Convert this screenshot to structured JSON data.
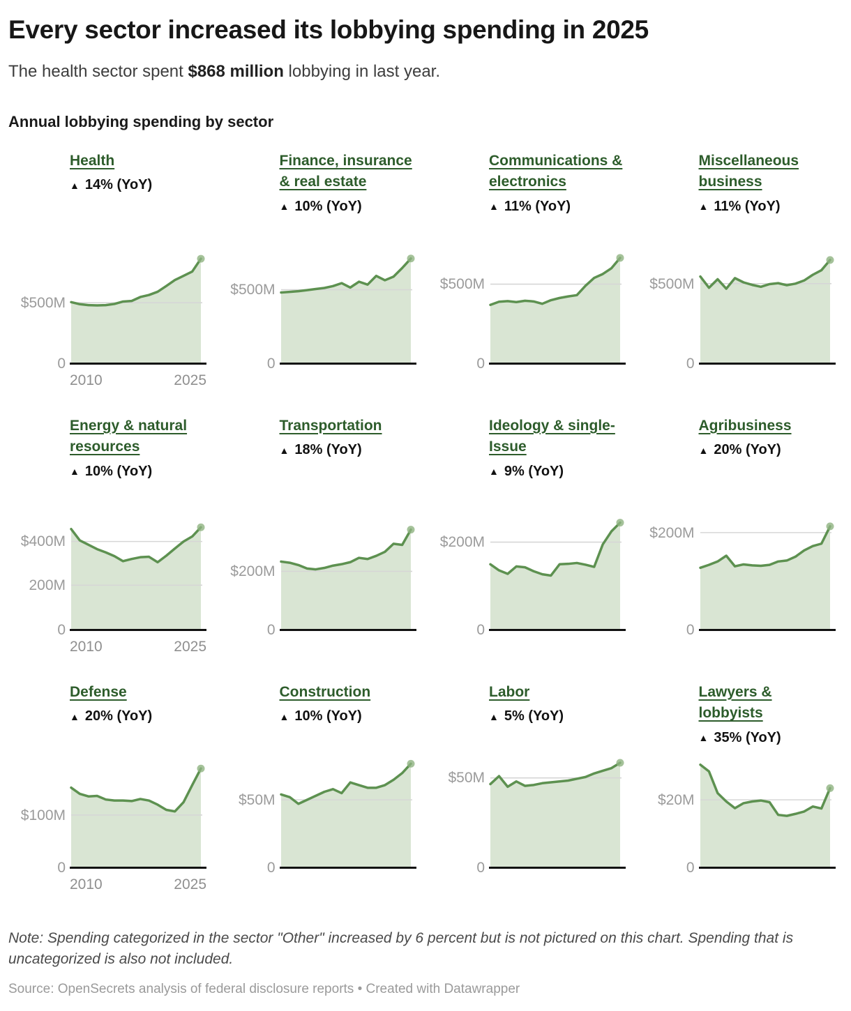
{
  "header": {
    "title": "Every sector increased its lobbying spending in 2025",
    "subtitle_prefix": "The health sector spent ",
    "subtitle_bold": "$868 million",
    "subtitle_suffix": " lobbying in last year.",
    "section_label": "Annual lobbying spending by sector"
  },
  "colors": {
    "title_green": "#2d5c2b",
    "line": "#5d9150",
    "fill": "#d9e5d3",
    "dot": "#8eb381",
    "gridline": "#d6d6d6",
    "baseline": "#111111",
    "axis_text": "#9b9b9b"
  },
  "chart_data": [
    {
      "type": "area",
      "slug": "health",
      "title": "Health",
      "change_arrow": "▲",
      "change_label": "14% (YoY)",
      "x_range": [
        2010,
        2025
      ],
      "x_tick_labels": [
        "2010",
        "2025"
      ],
      "ymax": 950,
      "unit": "$M",
      "gridlines": [
        {
          "value": 500,
          "label": "$500M"
        },
        {
          "value": 0,
          "label": "0"
        }
      ],
      "values": [
        505,
        488,
        480,
        478,
        480,
        490,
        510,
        515,
        548,
        565,
        592,
        640,
        690,
        725,
        761,
        868
      ]
    },
    {
      "type": "area",
      "slug": "finance-insurance-real-estate",
      "title": "Finance, insurance & real estate",
      "change_arrow": "▲",
      "change_label": "10% (YoY)",
      "x_range": [
        2010,
        2025
      ],
      "x_tick_labels": null,
      "ymax": 780,
      "unit": "$M",
      "gridlines": [
        {
          "value": 500,
          "label": "$500M"
        },
        {
          "value": 0,
          "label": "0"
        }
      ],
      "values": [
        481,
        485,
        490,
        497,
        505,
        512,
        525,
        545,
        515,
        555,
        535,
        595,
        565,
        590,
        649,
        714
      ]
    },
    {
      "type": "area",
      "slug": "communications-electronics",
      "title": "Communications & electronics",
      "change_arrow": "▲",
      "change_label": "11% (YoY)",
      "x_range": [
        2010,
        2025
      ],
      "x_tick_labels": null,
      "ymax": 725,
      "unit": "$M",
      "gridlines": [
        {
          "value": 500,
          "label": "$500M"
        },
        {
          "value": 0,
          "label": "0"
        }
      ],
      "values": [
        368,
        388,
        392,
        386,
        394,
        390,
        375,
        398,
        412,
        422,
        430,
        490,
        540,
        565,
        602,
        668
      ]
    },
    {
      "type": "area",
      "slug": "miscellaneous-business",
      "title": "Miscellaneous business",
      "change_arrow": "▲",
      "change_label": "11% (YoY)",
      "x_range": [
        2010,
        2025
      ],
      "x_tick_labels": null,
      "ymax": 720,
      "unit": "$M",
      "gridlines": [
        {
          "value": 500,
          "label": "$500M"
        },
        {
          "value": 0,
          "label": "0"
        }
      ],
      "values": [
        545,
        474,
        528,
        468,
        535,
        508,
        492,
        480,
        497,
        503,
        490,
        500,
        520,
        556,
        585,
        650
      ]
    },
    {
      "type": "area",
      "slug": "energy-natural-resources",
      "title": "Energy & natural resources",
      "change_arrow": "▲",
      "change_label": "10% (YoY)",
      "x_range": [
        2010,
        2025
      ],
      "x_tick_labels": [
        "2010",
        "2025"
      ],
      "ymax": 520,
      "unit": "$M",
      "gridlines": [
        {
          "value": 400,
          "label": "$400M"
        },
        {
          "value": 200,
          "label": "200M"
        },
        {
          "value": 0,
          "label": "0"
        }
      ],
      "values": [
        457,
        405,
        385,
        365,
        350,
        333,
        310,
        320,
        328,
        330,
        305,
        335,
        368,
        400,
        423,
        465
      ]
    },
    {
      "type": "area",
      "slug": "transportation",
      "title": "Transportation",
      "change_arrow": "▲",
      "change_label": "18% (YoY)",
      "x_range": [
        2010,
        2025
      ],
      "x_tick_labels": null,
      "ymax": 395,
      "unit": "$M",
      "gridlines": [
        {
          "value": 200,
          "label": "$200M"
        },
        {
          "value": 0,
          "label": "0"
        }
      ],
      "values": [
        234,
        230,
        222,
        210,
        207,
        212,
        220,
        225,
        232,
        247,
        243,
        254,
        268,
        296,
        292,
        345
      ]
    },
    {
      "type": "area",
      "slug": "ideology-single-issue",
      "title": "Ideology & single-Issue",
      "change_arrow": "▲",
      "change_label": "9% (YoY)",
      "x_range": [
        2010,
        2025
      ],
      "x_tick_labels": null,
      "ymax": 262,
      "unit": "$M",
      "gridlines": [
        {
          "value": 200,
          "label": "$200M"
        },
        {
          "value": 0,
          "label": "0"
        }
      ],
      "values": [
        149,
        135,
        127,
        144,
        142,
        133,
        126,
        123,
        149,
        150,
        152,
        148,
        143,
        195,
        225,
        245
      ]
    },
    {
      "type": "area",
      "slug": "agribusiness",
      "title": "Agribusiness",
      "change_arrow": "▲",
      "change_label": "20% (YoY)",
      "x_range": [
        2010,
        2025
      ],
      "x_tick_labels": null,
      "ymax": 236,
      "unit": "$M",
      "gridlines": [
        {
          "value": 200,
          "label": "$200M"
        },
        {
          "value": 0,
          "label": "0"
        }
      ],
      "values": [
        127,
        133,
        140,
        152,
        130,
        134,
        132,
        131,
        133,
        140,
        142,
        150,
        163,
        172,
        177,
        213
      ]
    },
    {
      "type": "area",
      "slug": "defense",
      "title": "Defense",
      "change_arrow": "▲",
      "change_label": "20% (YoY)",
      "x_range": [
        2010,
        2025
      ],
      "x_tick_labels": [
        "2010",
        "2025"
      ],
      "ymax": 220,
      "unit": "$M",
      "gridlines": [
        {
          "value": 100,
          "label": "$100M"
        },
        {
          "value": 0,
          "label": "0"
        }
      ],
      "values": [
        153,
        141,
        136,
        137,
        130,
        128,
        128,
        127,
        131,
        128,
        120,
        110,
        107,
        125,
        158,
        190
      ]
    },
    {
      "type": "area",
      "slug": "construction",
      "title": "Construction",
      "change_arrow": "▲",
      "change_label": "10% (YoY)",
      "x_range": [
        2010,
        2025
      ],
      "x_tick_labels": null,
      "ymax": 85,
      "unit": "$M",
      "gridlines": [
        {
          "value": 50,
          "label": "$50M"
        },
        {
          "value": 0,
          "label": "0"
        }
      ],
      "values": [
        54,
        52,
        47,
        50,
        53,
        56,
        58,
        55,
        63,
        61,
        59,
        59,
        61,
        65,
        70,
        77
      ]
    },
    {
      "type": "area",
      "slug": "labor",
      "title": "Labor",
      "change_arrow": "▲",
      "change_label": "5% (YoY)",
      "x_range": [
        2010,
        2025
      ],
      "x_tick_labels": null,
      "ymax": 64,
      "unit": "$M",
      "gridlines": [
        {
          "value": 50,
          "label": "$50M"
        },
        {
          "value": 0,
          "label": "0"
        }
      ],
      "values": [
        46.5,
        51,
        45,
        48,
        45.5,
        46,
        47,
        47.5,
        48,
        48.5,
        49.5,
        50.5,
        52.5,
        54,
        55.5,
        58.5
      ]
    },
    {
      "type": "area",
      "slug": "lawyers-lobbyists",
      "title": "Lawyers & lobbyists",
      "change_arrow": "▲",
      "change_label": "35% (YoY)",
      "x_range": [
        2010,
        2025
      ],
      "x_tick_labels": null,
      "ymax": 34,
      "unit": "$M",
      "gridlines": [
        {
          "value": 20,
          "label": "$20M"
        },
        {
          "value": 0,
          "label": "0"
        }
      ],
      "values": [
        30.5,
        28.5,
        22,
        19.5,
        17.5,
        19,
        19.5,
        19.8,
        19.3,
        15.5,
        15.2,
        15.8,
        16.5,
        18,
        17.4,
        23.5
      ]
    }
  ],
  "footer": {
    "note": "Note: Spending categorized in the sector \"Other\" increased by 6 percent but is not pictured on this chart. Spending that is uncategorized is also not included.",
    "source": "Source: OpenSecrets analysis of federal disclosure reports • Created with Datawrapper"
  }
}
